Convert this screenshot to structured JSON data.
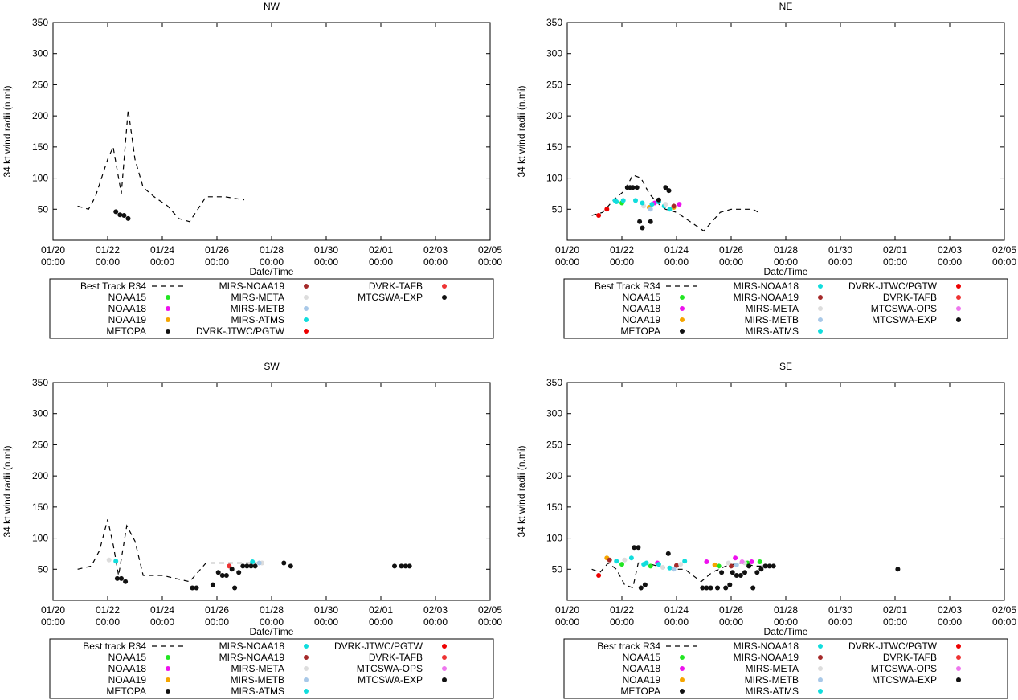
{
  "colors": {
    "best_track": "#000000",
    "NOAA15": "#22e622",
    "NOAA18": "#ee11ee",
    "NOAA19": "#f5a500",
    "METOPA": "#111111",
    "MIRS-NOAA18": "#11dddd",
    "MIRS-NOAA19": "#a52a2a",
    "MIRS-META": "#dddddd",
    "MIRS-METB": "#a8c8e8",
    "MIRS-ATMS": "#11dddd",
    "DVRK-JTWC/PGTW": "#ee0000",
    "DVRK-TAFB": "#ee3333",
    "MTCSWA-OPS": "#ee77ee",
    "MTCSWA-EXP": "#111111"
  },
  "chart_data": [
    {
      "type": "scatter",
      "title": "NW",
      "xlabel": "Date/Time",
      "ylabel": "34 kt wind radii (n.mi)",
      "xlim": [
        0,
        16
      ],
      "ylim": [
        0,
        350
      ],
      "yticks": [
        "50",
        "100",
        "150",
        "200",
        "250",
        "300",
        "350"
      ],
      "xticks": [
        [
          "01/20",
          "00:00"
        ],
        [
          "01/22",
          "00:00"
        ],
        [
          "01/24",
          "00:00"
        ],
        [
          "01/26",
          "00:00"
        ],
        [
          "01/28",
          "00:00"
        ],
        [
          "01/30",
          "00:00"
        ],
        [
          "02/01",
          "00:00"
        ],
        [
          "02/03",
          "00:00"
        ],
        [
          "02/05",
          "00:00"
        ]
      ],
      "best_track": {
        "x": [
          0.9,
          1.3,
          1.55,
          2.0,
          2.2,
          2.5,
          2.75,
          3.0,
          3.3,
          3.7,
          4.2,
          4.6,
          5.0,
          5.3,
          5.6,
          6.3,
          7.0
        ],
        "y": [
          55,
          50,
          70,
          130,
          150,
          75,
          210,
          130,
          85,
          70,
          55,
          35,
          30,
          50,
          70,
          70,
          65
        ]
      },
      "points": [
        {
          "source": "METOPA",
          "x": [
            2.3,
            2.45,
            2.6,
            2.75
          ],
          "y": [
            46,
            41,
            40,
            35
          ]
        }
      ],
      "legend": [
        {
          "label": "Best Track R34",
          "key": "best_track",
          "style": "dash"
        },
        {
          "label": "NOAA15",
          "key": "NOAA15",
          "style": "dot"
        },
        {
          "label": "NOAA18",
          "key": "NOAA18",
          "style": "dot"
        },
        {
          "label": "NOAA19",
          "key": "NOAA19",
          "style": "dot"
        },
        {
          "label": "METOPA",
          "key": "METOPA",
          "style": "dot"
        },
        {
          "label": "MIRS-NOAA19",
          "key": "MIRS-NOAA19",
          "style": "dot"
        },
        {
          "label": "MIRS-META",
          "key": "MIRS-META",
          "style": "dot"
        },
        {
          "label": "MIRS-METB",
          "key": "MIRS-METB",
          "style": "dot"
        },
        {
          "label": "MIRS-ATMS",
          "key": "MIRS-ATMS",
          "style": "dot"
        },
        {
          "label": "DVRK-JTWC/PGTW",
          "key": "DVRK-JTWC/PGTW",
          "style": "dot"
        },
        {
          "label": "DVRK-TAFB",
          "key": "DVRK-TAFB",
          "style": "dot"
        },
        {
          "label": "MTCSWA-EXP",
          "key": "MTCSWA-EXP",
          "style": "dot"
        }
      ]
    },
    {
      "type": "scatter",
      "title": "NE",
      "xlabel": "Date/Time",
      "ylabel": "34 kt wind radii (n.mi)",
      "xlim": [
        0,
        16
      ],
      "ylim": [
        0,
        350
      ],
      "yticks": [
        "50",
        "100",
        "150",
        "200",
        "250",
        "300",
        "350"
      ],
      "xticks": [
        [
          "01/20",
          "00:00"
        ],
        [
          "01/22",
          "00:00"
        ],
        [
          "01/24",
          "00:00"
        ],
        [
          "01/26",
          "00:00"
        ],
        [
          "01/28",
          "00:00"
        ],
        [
          "01/30",
          "00:00"
        ],
        [
          "02/01",
          "00:00"
        ],
        [
          "02/03",
          "00:00"
        ],
        [
          "02/05",
          "00:00"
        ]
      ],
      "best_track": {
        "x": [
          0.9,
          1.3,
          1.7,
          2.1,
          2.4,
          2.7,
          3.0,
          3.3,
          3.6,
          4.0,
          4.5,
          5.0,
          5.2,
          5.6,
          6.0,
          6.4,
          6.8,
          7.0
        ],
        "y": [
          40,
          45,
          65,
          80,
          105,
          100,
          75,
          60,
          50,
          45,
          30,
          15,
          25,
          45,
          50,
          50,
          50,
          45
        ]
      },
      "points": [
        {
          "source": "DVRK-JTWC/PGTW",
          "x": [
            1.15,
            1.45
          ],
          "y": [
            40,
            50
          ]
        },
        {
          "source": "NOAA15",
          "x": [
            2.0
          ],
          "y": [
            60
          ]
        },
        {
          "source": "NOAA19",
          "x": [
            3.0,
            3.9
          ],
          "y": [
            53,
            53
          ]
        },
        {
          "source": "NOAA18",
          "x": [
            3.2,
            4.1
          ],
          "y": [
            60,
            58
          ]
        },
        {
          "source": "MIRS-NOAA18",
          "x": [
            1.75,
            2.5,
            3.55,
            3.75
          ],
          "y": [
            64,
            64,
            55,
            50
          ]
        },
        {
          "source": "MIRS-NOAA19",
          "x": [
            3.9
          ],
          "y": [
            55
          ]
        },
        {
          "source": "MIRS-META",
          "x": [
            2.8,
            3.6
          ],
          "y": [
            55,
            58
          ]
        },
        {
          "source": "MIRS-METB",
          "x": [
            3.05
          ],
          "y": [
            50
          ]
        },
        {
          "source": "MIRS-ATMS",
          "x": [
            1.8,
            2.05,
            2.75,
            3.1,
            3.35
          ],
          "y": [
            62,
            64,
            60,
            58,
            62
          ]
        },
        {
          "source": "METOPA",
          "x": [
            2.2,
            2.3,
            2.4,
            2.55,
            2.65,
            2.75,
            3.05,
            3.35,
            3.6,
            3.72
          ],
          "y": [
            85,
            85,
            85,
            85,
            30,
            20,
            30,
            65,
            85,
            80
          ]
        }
      ],
      "legend": [
        {
          "label": "Best Track R34",
          "key": "best_track",
          "style": "dash"
        },
        {
          "label": "NOAA15",
          "key": "NOAA15",
          "style": "dot"
        },
        {
          "label": "NOAA18",
          "key": "NOAA18",
          "style": "dot"
        },
        {
          "label": "NOAA19",
          "key": "NOAA19",
          "style": "dot"
        },
        {
          "label": "METOPA",
          "key": "METOPA",
          "style": "dot"
        },
        {
          "label": "MIRS-NOAA18",
          "key": "MIRS-NOAA18",
          "style": "dot"
        },
        {
          "label": "MIRS-NOAA19",
          "key": "MIRS-NOAA19",
          "style": "dot"
        },
        {
          "label": "MIRS-META",
          "key": "MIRS-META",
          "style": "dot"
        },
        {
          "label": "MIRS-METB",
          "key": "MIRS-METB",
          "style": "dot"
        },
        {
          "label": "MIRS-ATMS",
          "key": "MIRS-ATMS",
          "style": "dot"
        },
        {
          "label": "DVRK-JTWC/PGTW",
          "key": "DVRK-JTWC/PGTW",
          "style": "dot"
        },
        {
          "label": "DVRK-TAFB",
          "key": "DVRK-TAFB",
          "style": "dot"
        },
        {
          "label": "MTCSWA-OPS",
          "key": "MTCSWA-OPS",
          "style": "dot"
        },
        {
          "label": "MTCSWA-EXP",
          "key": "MTCSWA-EXP",
          "style": "dot"
        }
      ]
    },
    {
      "type": "scatter",
      "title": "SW",
      "xlabel": "Date/Time",
      "ylabel": "34 kt wind radii (n.mi)",
      "xlim": [
        0,
        16
      ],
      "ylim": [
        0,
        350
      ],
      "yticks": [
        "50",
        "100",
        "150",
        "200",
        "250",
        "300",
        "350"
      ],
      "xticks": [
        [
          "01/20",
          "00:00"
        ],
        [
          "01/22",
          "00:00"
        ],
        [
          "01/24",
          "00:00"
        ],
        [
          "01/26",
          "00:00"
        ],
        [
          "01/28",
          "00:00"
        ],
        [
          "01/30",
          "00:00"
        ],
        [
          "02/01",
          "00:00"
        ],
        [
          "02/03",
          "00:00"
        ],
        [
          "02/05",
          "00:00"
        ]
      ],
      "best_track": {
        "x": [
          0.9,
          1.4,
          1.7,
          2.0,
          2.2,
          2.4,
          2.7,
          3.0,
          3.3,
          4.0,
          5.0,
          5.6,
          6.4,
          7.2,
          7.6
        ],
        "y": [
          50,
          55,
          80,
          130,
          90,
          40,
          120,
          95,
          40,
          40,
          30,
          60,
          60,
          60,
          60
        ]
      },
      "points": [
        {
          "source": "MIRS-META",
          "x": [
            2.05,
            7.65
          ],
          "y": [
            65,
            60
          ]
        },
        {
          "source": "MIRS-ATMS",
          "x": [
            2.3,
            7.3
          ],
          "y": [
            63,
            62
          ]
        },
        {
          "source": "MIRS-METB",
          "x": [
            7.55
          ],
          "y": [
            60
          ]
        },
        {
          "source": "DVRK-TAFB",
          "x": [
            6.45
          ],
          "y": [
            55
          ]
        },
        {
          "source": "METOPA",
          "x": [
            2.35,
            2.5,
            2.65,
            5.1,
            5.25,
            5.85,
            6.05,
            6.2,
            6.35,
            6.55,
            6.65,
            6.8,
            6.95,
            7.1,
            7.25,
            7.4,
            8.45,
            8.7,
            12.5,
            12.75,
            12.9,
            13.05
          ],
          "y": [
            35,
            35,
            30,
            20,
            20,
            25,
            45,
            40,
            40,
            50,
            20,
            45,
            55,
            55,
            55,
            55,
            60,
            55,
            55,
            55,
            55,
            55
          ]
        }
      ],
      "legend": [
        {
          "label": "Best track R34",
          "key": "best_track",
          "style": "dash"
        },
        {
          "label": "NOAA15",
          "key": "NOAA15",
          "style": "dot"
        },
        {
          "label": "NOAA18",
          "key": "NOAA18",
          "style": "dot"
        },
        {
          "label": "NOAA19",
          "key": "NOAA19",
          "style": "dot"
        },
        {
          "label": "METOPA",
          "key": "METOPA",
          "style": "dot"
        },
        {
          "label": "MIRS-NOAA18",
          "key": "MIRS-NOAA18",
          "style": "dot"
        },
        {
          "label": "MIRS-NOAA19",
          "key": "MIRS-NOAA19",
          "style": "dot"
        },
        {
          "label": "MIRS-META",
          "key": "MIRS-META",
          "style": "dot"
        },
        {
          "label": "MIRS-METB",
          "key": "MIRS-METB",
          "style": "dot"
        },
        {
          "label": "MIRS-ATMS",
          "key": "MIRS-ATMS",
          "style": "dot"
        },
        {
          "label": "DVRK-JTWC/PGTW",
          "key": "DVRK-JTWC/PGTW",
          "style": "dot"
        },
        {
          "label": "DVRK-TAFB",
          "key": "DVRK-TAFB",
          "style": "dot"
        },
        {
          "label": "MTCSWA-OPS",
          "key": "MTCSWA-OPS",
          "style": "dot"
        },
        {
          "label": "MTCSWA-EXP",
          "key": "MTCSWA-EXP",
          "style": "dot"
        }
      ]
    },
    {
      "type": "scatter",
      "title": "SE",
      "xlabel": "Date/Time",
      "ylabel": "34 kt wind radii (n.mi)",
      "xlim": [
        0,
        16
      ],
      "ylim": [
        0,
        350
      ],
      "yticks": [
        "50",
        "100",
        "150",
        "200",
        "250",
        "300",
        "350"
      ],
      "xticks": [
        [
          "01/20",
          "00:00"
        ],
        [
          "01/22",
          "00:00"
        ],
        [
          "01/24",
          "00:00"
        ],
        [
          "01/26",
          "00:00"
        ],
        [
          "01/28",
          "00:00"
        ],
        [
          "01/30",
          "00:00"
        ],
        [
          "02/01",
          "00:00"
        ],
        [
          "02/03",
          "00:00"
        ],
        [
          "02/05",
          "00:00"
        ]
      ],
      "best_track": {
        "x": [
          0.9,
          1.2,
          1.5,
          1.8,
          2.1,
          2.4,
          2.6,
          2.9,
          3.3,
          3.8,
          4.3,
          4.9,
          5.3,
          5.8,
          6.3,
          6.9,
          7.3
        ],
        "y": [
          50,
          45,
          60,
          50,
          25,
          20,
          60,
          60,
          55,
          50,
          50,
          30,
          45,
          55,
          60,
          55,
          55
        ]
      },
      "points": [
        {
          "source": "DVRK-JTWC/PGTW",
          "x": [
            1.15
          ],
          "y": [
            40
          ]
        },
        {
          "source": "NOAA19",
          "x": [
            1.45,
            5.4
          ],
          "y": [
            68,
            57
          ]
        },
        {
          "source": "NOAA15",
          "x": [
            2.0,
            3.05,
            5.55,
            6.6,
            7.05
          ],
          "y": [
            58,
            55,
            55,
            60,
            62
          ]
        },
        {
          "source": "NOAA18",
          "x": [
            3.3,
            5.1,
            6.15,
            6.75
          ],
          "y": [
            60,
            62,
            68,
            62
          ]
        },
        {
          "source": "MIRS-NOAA18",
          "x": [
            1.8,
            2.35,
            2.9,
            3.75,
            4.3
          ],
          "y": [
            63,
            68,
            60,
            52,
            63
          ]
        },
        {
          "source": "MIRS-NOAA19",
          "x": [
            1.55,
            4.0,
            6.0
          ],
          "y": [
            65,
            56,
            55
          ]
        },
        {
          "source": "MIRS-META",
          "x": [
            2.1,
            3.5,
            4.15,
            5.9,
            6.5
          ],
          "y": [
            65,
            53,
            58,
            60,
            60
          ]
        },
        {
          "source": "MIRS-METB",
          "x": [
            3.9,
            6.2
          ],
          "y": [
            50,
            57
          ]
        },
        {
          "source": "MIRS-ATMS",
          "x": [
            2.8,
            3.35
          ],
          "y": [
            58,
            58
          ]
        },
        {
          "source": "MTCSWA-OPS",
          "x": [
            6.4
          ],
          "y": [
            62
          ]
        },
        {
          "source": "METOPA",
          "x": [
            2.45,
            2.6,
            2.7,
            2.85,
            3.7,
            4.95,
            5.1,
            5.25,
            5.5,
            5.65,
            5.8,
            5.95,
            6.05,
            6.2,
            6.35,
            6.5,
            6.65,
            6.8,
            6.95,
            7.1,
            7.25,
            7.4,
            7.55,
            12.1
          ],
          "y": [
            85,
            85,
            20,
            25,
            75,
            20,
            20,
            20,
            20,
            45,
            20,
            25,
            45,
            40,
            40,
            45,
            55,
            20,
            45,
            50,
            55,
            55,
            55,
            50
          ]
        }
      ],
      "legend": [
        {
          "label": "Best track R34",
          "key": "best_track",
          "style": "dash"
        },
        {
          "label": "NOAA15",
          "key": "NOAA15",
          "style": "dot"
        },
        {
          "label": "NOAA18",
          "key": "NOAA18",
          "style": "dot"
        },
        {
          "label": "NOAA19",
          "key": "NOAA19",
          "style": "dot"
        },
        {
          "label": "METOPA",
          "key": "METOPA",
          "style": "dot"
        },
        {
          "label": "MIRS-NOAA18",
          "key": "MIRS-NOAA18",
          "style": "dot"
        },
        {
          "label": "MIRS-NOAA19",
          "key": "MIRS-NOAA19",
          "style": "dot"
        },
        {
          "label": "MIRS-META",
          "key": "MIRS-META",
          "style": "dot"
        },
        {
          "label": "MIRS-METB",
          "key": "MIRS-METB",
          "style": "dot"
        },
        {
          "label": "MIRS-ATMS",
          "key": "MIRS-ATMS",
          "style": "dot"
        },
        {
          "label": "DVRK-JTWC/PGTW",
          "key": "DVRK-JTWC/PGTW",
          "style": "dot"
        },
        {
          "label": "DVRK-TAFB",
          "key": "DVRK-TAFB",
          "style": "dot"
        },
        {
          "label": "MTCSWA-OPS",
          "key": "MTCSWA-OPS",
          "style": "dot"
        },
        {
          "label": "MTCSWA-EXP",
          "key": "MTCSWA-EXP",
          "style": "dot"
        }
      ]
    }
  ]
}
